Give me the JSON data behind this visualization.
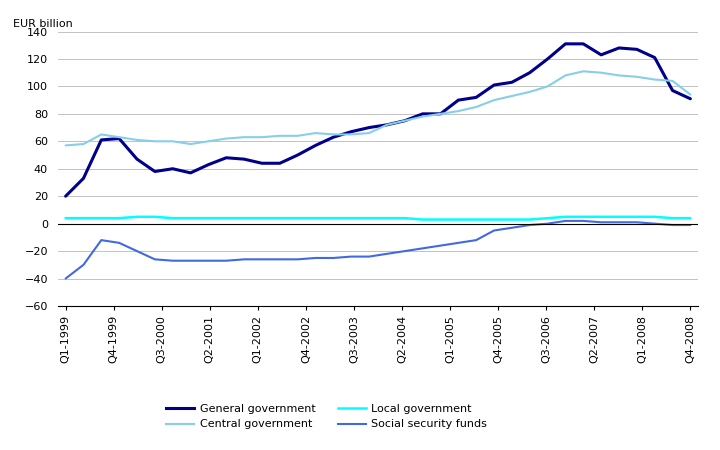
{
  "ylabel": "EUR billion",
  "ylim": [
    -60,
    140
  ],
  "yticks": [
    -60,
    -40,
    -20,
    0,
    20,
    40,
    60,
    80,
    100,
    120,
    140
  ],
  "x_labels": [
    "Q1-1999",
    "Q4-1999",
    "Q3-2000",
    "Q2-2001",
    "Q1-2002",
    "Q4-2002",
    "Q3-2003",
    "Q2-2004",
    "Q1-2005",
    "Q4-2005",
    "Q3-2006",
    "Q2-2007",
    "Q1-2008",
    "Q4-2008"
  ],
  "tick_positions": [
    0,
    3,
    6,
    9,
    12,
    15,
    18,
    21,
    24,
    27,
    30,
    33,
    36,
    39
  ],
  "xlim": [
    -0.5,
    39.5
  ],
  "series": {
    "General government": {
      "color": "#00008B",
      "linewidth": 2.2,
      "data": [
        20,
        33,
        61,
        62,
        47,
        38,
        40,
        37,
        43,
        48,
        47,
        44,
        44,
        50,
        57,
        63,
        67,
        70,
        72,
        75,
        80,
        80,
        90,
        92,
        101,
        103,
        110,
        120,
        131,
        131,
        123,
        128,
        127,
        121,
        97,
        91
      ]
    },
    "Central government": {
      "color": "#87CEEB",
      "linewidth": 1.5,
      "data": [
        57,
        58,
        65,
        63,
        61,
        60,
        60,
        58,
        60,
        62,
        63,
        63,
        64,
        64,
        66,
        65,
        65,
        66,
        72,
        75,
        78,
        80,
        82,
        85,
        90,
        93,
        96,
        100,
        108,
        111,
        110,
        108,
        107,
        105,
        104,
        94
      ]
    },
    "Local government": {
      "color": "#00FFFF",
      "linewidth": 1.8,
      "data": [
        4,
        4,
        4,
        4,
        5,
        5,
        4,
        4,
        4,
        4,
        4,
        4,
        4,
        4,
        4,
        4,
        4,
        4,
        4,
        4,
        3,
        3,
        3,
        3,
        3,
        3,
        3,
        4,
        5,
        5,
        5,
        5,
        5,
        5,
        4,
        4
      ]
    },
    "Social security funds": {
      "color": "#4169E1",
      "linewidth": 1.5,
      "data": [
        -40,
        -30,
        -12,
        -14,
        -20,
        -26,
        -27,
        -27,
        -27,
        -27,
        -26,
        -26,
        -26,
        -26,
        -25,
        -25,
        -24,
        -24,
        -22,
        -20,
        -18,
        -16,
        -14,
        -12,
        -5,
        -3,
        -1,
        0,
        2,
        2,
        1,
        1,
        1,
        0,
        -1,
        -1
      ]
    }
  },
  "legend_order": [
    "General government",
    "Central government",
    "Local government",
    "Social security funds"
  ],
  "legend_ncol": 2,
  "legend_fontsize": 8,
  "tick_fontsize": 8,
  "ylabel_fontsize": 8,
  "grid_color": "#aaaaaa",
  "grid_linewidth": 0.5,
  "bg_color": "#ffffff"
}
